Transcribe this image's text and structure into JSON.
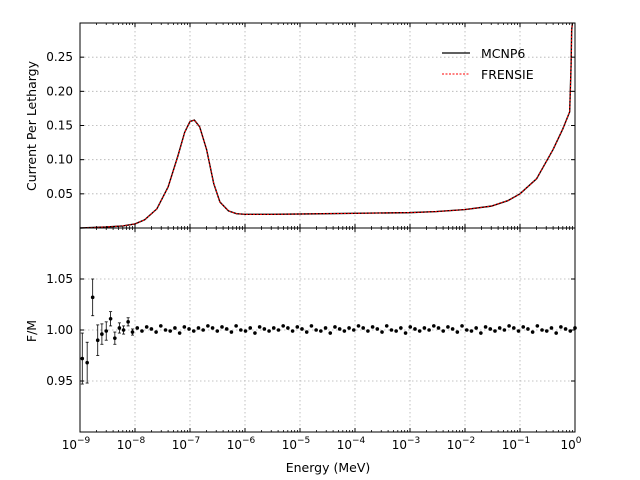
{
  "chart_data": [
    {
      "panel": "top",
      "type": "line",
      "xlabel": "",
      "ylabel": "Current Per Lethargy",
      "xscale": "log",
      "xlim": [
        1e-09,
        1
      ],
      "ylim": [
        0.0,
        0.3
      ],
      "yticks": [
        0.05,
        0.1,
        0.15,
        0.2,
        0.25
      ],
      "ytick_labels": [
        "0.05",
        "0.10",
        "0.15",
        "0.20",
        "0.25"
      ],
      "grid": true,
      "legend_position": "top-right",
      "series": [
        {
          "name": "MCNP6",
          "color": "#000000",
          "style": "solid",
          "x": [
            1e-09,
            3e-09,
            6e-09,
            1e-08,
            1.5e-08,
            2.5e-08,
            4e-08,
            6e-08,
            8e-08,
            1e-07,
            1.2e-07,
            1.5e-07,
            2e-07,
            2.7e-07,
            3.5e-07,
            5e-07,
            7e-07,
            1e-06,
            3e-06,
            1e-05,
            0.0001,
            0.001,
            0.003,
            0.01,
            0.03,
            0.06,
            0.1,
            0.2,
            0.4,
            0.6,
            0.8,
            0.85,
            0.87,
            0.9
          ],
          "y": [
            0.0,
            0.0015,
            0.003,
            0.006,
            0.012,
            0.028,
            0.06,
            0.105,
            0.14,
            0.156,
            0.158,
            0.148,
            0.115,
            0.065,
            0.038,
            0.025,
            0.021,
            0.02,
            0.02,
            0.0205,
            0.0215,
            0.0225,
            0.024,
            0.027,
            0.032,
            0.04,
            0.05,
            0.072,
            0.115,
            0.145,
            0.17,
            0.24,
            0.29,
            0.3
          ]
        },
        {
          "name": "FRENSIE",
          "color": "#ff0000",
          "style": "dashed",
          "x": [
            1e-09,
            3e-09,
            6e-09,
            1e-08,
            1.5e-08,
            2.5e-08,
            4e-08,
            6e-08,
            8e-08,
            1e-07,
            1.2e-07,
            1.5e-07,
            2e-07,
            2.7e-07,
            3.5e-07,
            5e-07,
            7e-07,
            1e-06,
            3e-06,
            1e-05,
            0.0001,
            0.001,
            0.003,
            0.01,
            0.03,
            0.06,
            0.1,
            0.2,
            0.4,
            0.6,
            0.8,
            0.85,
            0.87,
            0.9
          ],
          "y": [
            0.0,
            0.0015,
            0.003,
            0.006,
            0.012,
            0.028,
            0.06,
            0.105,
            0.14,
            0.156,
            0.158,
            0.148,
            0.115,
            0.065,
            0.038,
            0.025,
            0.021,
            0.02,
            0.02,
            0.0205,
            0.0215,
            0.0225,
            0.024,
            0.027,
            0.032,
            0.04,
            0.05,
            0.072,
            0.115,
            0.145,
            0.17,
            0.24,
            0.29,
            0.3
          ]
        }
      ]
    },
    {
      "panel": "bottom",
      "type": "scatter",
      "xlabel": "Energy (MeV)",
      "ylabel": "F/M",
      "xscale": "log",
      "xlim": [
        1e-09,
        1
      ],
      "ylim": [
        0.9,
        1.1
      ],
      "yticks": [
        0.95,
        1.0,
        1.05
      ],
      "ytick_labels": [
        "0.95",
        "1.00",
        "1.05"
      ],
      "xticks": [
        1e-09,
        1e-08,
        1e-07,
        1e-06,
        1e-05,
        0.0001,
        0.001,
        0.01,
        0.1,
        1
      ],
      "xtick_labels": [
        {
          "base": "10",
          "exp": "−9"
        },
        {
          "base": "10",
          "exp": "−8"
        },
        {
          "base": "10",
          "exp": "−7"
        },
        {
          "base": "10",
          "exp": "−6"
        },
        {
          "base": "10",
          "exp": "−5"
        },
        {
          "base": "10",
          "exp": "−4"
        },
        {
          "base": "10",
          "exp": "−3"
        },
        {
          "base": "10",
          "exp": "−2"
        },
        {
          "base": "10",
          "exp": "−1"
        },
        {
          "base": "10",
          "exp": "0"
        }
      ],
      "grid": true,
      "marker_color": "#000000",
      "points_early": [
        {
          "x": 1.1e-09,
          "y": 0.972,
          "err": 0.025
        },
        {
          "x": 1.35e-09,
          "y": 0.968,
          "err": 0.02
        },
        {
          "x": 1.7e-09,
          "y": 1.032,
          "err": 0.018
        },
        {
          "x": 2.1e-09,
          "y": 0.99,
          "err": 0.015
        },
        {
          "x": 2.5e-09,
          "y": 0.996,
          "err": 0.01
        },
        {
          "x": 3e-09,
          "y": 0.999,
          "err": 0.009
        },
        {
          "x": 3.6e-09,
          "y": 1.011,
          "err": 0.007
        },
        {
          "x": 4.3e-09,
          "y": 0.992,
          "err": 0.006
        },
        {
          "x": 5.2e-09,
          "y": 1.002,
          "err": 0.005
        },
        {
          "x": 6.2e-09,
          "y": 1.0,
          "err": 0.004
        },
        {
          "x": 7.5e-09,
          "y": 1.008,
          "err": 0.004
        },
        {
          "x": 9e-09,
          "y": 0.998,
          "err": 0.003
        }
      ],
      "dense_start": 1.1e-08,
      "dense_end": 1.0,
      "dense_count": 94,
      "dense_y_pattern": [
        1.002,
        0.999,
        1.003,
        1.001,
        0.998,
        1.004,
        1.0,
        0.999,
        1.002,
        0.997,
        1.003,
        1.001,
        0.999,
        1.002,
        1.0,
        1.004
      ]
    }
  ]
}
